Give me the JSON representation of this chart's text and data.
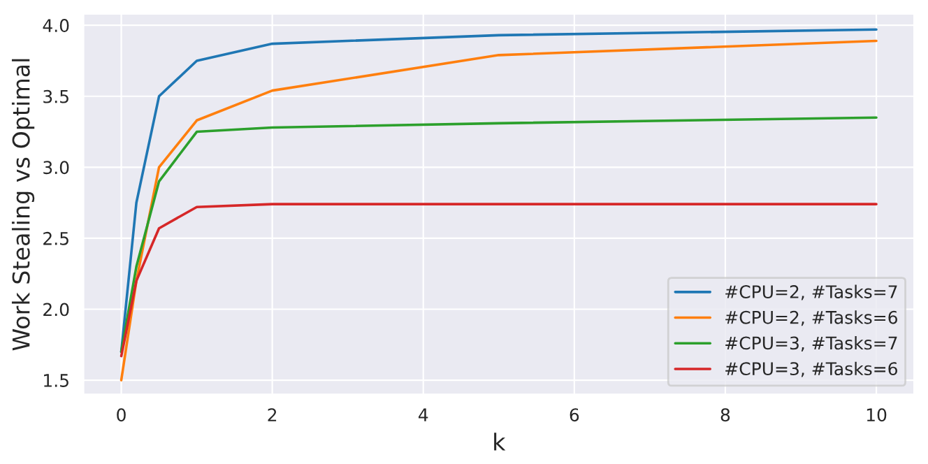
{
  "chart_data": {
    "type": "line",
    "xlabel": "k",
    "ylabel": "Work Stealing vs Optimal",
    "x": [
      0,
      0.2,
      0.5,
      1,
      2,
      5,
      10
    ],
    "series": [
      {
        "name": "#CPU=2, #Tasks=7",
        "color": "#1f77b4",
        "values": [
          1.7,
          2.75,
          3.5,
          3.75,
          3.87,
          3.93,
          3.97
        ]
      },
      {
        "name": "#CPU=2, #Tasks=6",
        "color": "#ff7f0e",
        "values": [
          1.5,
          2.2,
          3.0,
          3.33,
          3.54,
          3.79,
          3.89
        ]
      },
      {
        "name": "#CPU=3, #Tasks=7",
        "color": "#2ca02c",
        "values": [
          1.7,
          2.3,
          2.9,
          3.25,
          3.28,
          3.31,
          3.35
        ]
      },
      {
        "name": "#CPU=3, #Tasks=6",
        "color": "#d62728",
        "values": [
          1.67,
          2.2,
          2.57,
          2.72,
          2.74,
          2.74,
          2.74
        ]
      }
    ],
    "xlim": [
      -0.5,
      10.5
    ],
    "ylim": [
      1.4,
      4.08
    ],
    "xticks": [
      0,
      2,
      4,
      6,
      8,
      10
    ],
    "yticks": [
      {
        "value": 1.5,
        "label": "1.5"
      },
      {
        "value": 2.0,
        "label": "2.0"
      },
      {
        "value": 2.5,
        "label": "2.5"
      },
      {
        "value": 3.0,
        "label": "3.0"
      },
      {
        "value": 3.5,
        "label": "3.5"
      },
      {
        "value": 4.0,
        "label": "4.0"
      }
    ],
    "grid": true,
    "legend": "bottom right"
  }
}
